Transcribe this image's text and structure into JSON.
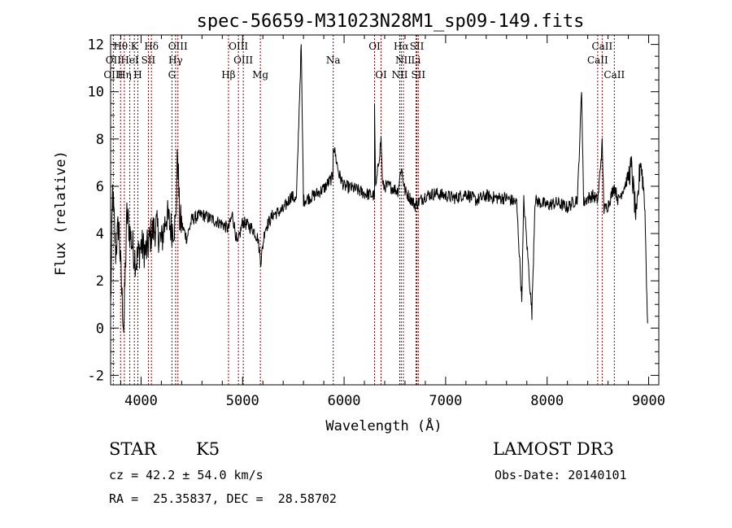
{
  "chart_data": {
    "type": "line",
    "title": "spec-56659-M31023N28M1_sp09-149.fits",
    "xlabel": "Wavelength (Å)",
    "ylabel": "Flux (relative)",
    "xlim": [
      3700,
      9100
    ],
    "ylim": [
      -2.4,
      12.4
    ],
    "xticks": [
      4000,
      5000,
      6000,
      7000,
      8000,
      9000
    ],
    "yticks": [
      -2,
      0,
      2,
      4,
      6,
      8,
      10,
      12
    ],
    "series": [
      {
        "name": "flux",
        "anchors": [
          [
            3700,
            0.8
          ],
          [
            3720,
            5.8
          ],
          [
            3750,
            3.2
          ],
          [
            3780,
            4.5
          ],
          [
            3810,
            1.5
          ],
          [
            3830,
            0.0
          ],
          [
            3860,
            4.8
          ],
          [
            3900,
            3.8
          ],
          [
            3950,
            2.8
          ],
          [
            4000,
            3.5
          ],
          [
            4050,
            3.2
          ],
          [
            4100,
            4.0
          ],
          [
            4150,
            4.3
          ],
          [
            4200,
            3.6
          ],
          [
            4250,
            4.8
          ],
          [
            4300,
            4.2
          ],
          [
            4340,
            4.4
          ],
          [
            4360,
            7.5
          ],
          [
            4380,
            4.6
          ],
          [
            4450,
            3.8
          ],
          [
            4500,
            4.6
          ],
          [
            4600,
            4.8
          ],
          [
            4700,
            4.6
          ],
          [
            4800,
            4.4
          ],
          [
            4860,
            4.2
          ],
          [
            4900,
            4.8
          ],
          [
            4950,
            3.5
          ],
          [
            5000,
            4.5
          ],
          [
            5100,
            4.2
          ],
          [
            5150,
            3.8
          ],
          [
            5180,
            2.8
          ],
          [
            5220,
            4.2
          ],
          [
            5300,
            4.8
          ],
          [
            5400,
            5.0
          ],
          [
            5480,
            5.6
          ],
          [
            5530,
            5.4
          ],
          [
            5577,
            12.0
          ],
          [
            5600,
            5.4
          ],
          [
            5700,
            5.6
          ],
          [
            5800,
            5.9
          ],
          [
            5890,
            6.4
          ],
          [
            5893,
            7.8
          ],
          [
            5950,
            6.5
          ],
          [
            6000,
            6.0
          ],
          [
            6100,
            5.9
          ],
          [
            6200,
            5.7
          ],
          [
            6300,
            5.6
          ],
          [
            6300,
            9.5
          ],
          [
            6310,
            5.8
          ],
          [
            6364,
            8.0
          ],
          [
            6380,
            6.0
          ],
          [
            6450,
            6.0
          ],
          [
            6530,
            5.8
          ],
          [
            6563,
            6.8
          ],
          [
            6600,
            5.8
          ],
          [
            6700,
            5.2
          ],
          [
            6800,
            5.6
          ],
          [
            6900,
            5.7
          ],
          [
            7000,
            5.6
          ],
          [
            7100,
            5.5
          ],
          [
            7200,
            5.7
          ],
          [
            7300,
            5.4
          ],
          [
            7400,
            5.6
          ],
          [
            7500,
            5.5
          ],
          [
            7600,
            5.5
          ],
          [
            7700,
            5.3
          ],
          [
            7750,
            1.2
          ],
          [
            7770,
            5.4
          ],
          [
            7850,
            0.6
          ],
          [
            7880,
            5.4
          ],
          [
            8000,
            5.2
          ],
          [
            8100,
            5.3
          ],
          [
            8200,
            5.1
          ],
          [
            8300,
            5.5
          ],
          [
            8340,
            10.1
          ],
          [
            8360,
            5.3
          ],
          [
            8400,
            5.5
          ],
          [
            8450,
            5.6
          ],
          [
            8500,
            5.4
          ],
          [
            8542,
            7.8
          ],
          [
            8560,
            5.0
          ],
          [
            8600,
            5.2
          ],
          [
            8662,
            6.0
          ],
          [
            8700,
            5.4
          ],
          [
            8780,
            6.2
          ],
          [
            8830,
            6.8
          ],
          [
            8880,
            4.5
          ],
          [
            8920,
            7.2
          ],
          [
            8960,
            5.5
          ],
          [
            8990,
            0.2
          ]
        ]
      }
    ],
    "emission_lines": [
      {
        "label": "Hθ",
        "wave": 3798,
        "row": 0
      },
      {
        "label": "K",
        "wave": 3934,
        "row": 0
      },
      {
        "label": "Hδ",
        "wave": 4102,
        "row": 0
      },
      {
        "label": "OIII",
        "wave": 4363,
        "row": 0
      },
      {
        "label": "OIII",
        "wave": 4959,
        "row": 0
      },
      {
        "label": "OI",
        "wave": 6300,
        "row": 0
      },
      {
        "label": "Hα",
        "wave": 6563,
        "row": 0
      },
      {
        "label": "SII",
        "wave": 6717,
        "row": 0
      },
      {
        "label": "CaII",
        "wave": 8542,
        "row": 0
      },
      {
        "label": "OII",
        "wave": 3727,
        "row": 1
      },
      {
        "label": "HeI",
        "wave": 3889,
        "row": 1
      },
      {
        "label": "SII",
        "wave": 4072,
        "row": 1
      },
      {
        "label": "Hγ",
        "wave": 4340,
        "row": 1
      },
      {
        "label": "OIII",
        "wave": 5007,
        "row": 1
      },
      {
        "label": "Na",
        "wave": 5893,
        "row": 1
      },
      {
        "label": "NII",
        "wave": 6584,
        "row": 1
      },
      {
        "label": "Li",
        "wave": 6708,
        "row": 1
      },
      {
        "label": "CaII",
        "wave": 8498,
        "row": 1
      },
      {
        "label": "OIII",
        "wave": 3727,
        "row": 2
      },
      {
        "label": "Hη",
        "wave": 3835,
        "row": 2
      },
      {
        "label": "H",
        "wave": 3968,
        "row": 2
      },
      {
        "label": "G",
        "wave": 4304,
        "row": 2
      },
      {
        "label": "Hβ",
        "wave": 4861,
        "row": 2
      },
      {
        "label": "Mg",
        "wave": 5175,
        "row": 2
      },
      {
        "label": "OI",
        "wave": 6364,
        "row": 2
      },
      {
        "label": "NII",
        "wave": 6548,
        "row": 2
      },
      {
        "label": "SII",
        "wave": 6731,
        "row": 2
      },
      {
        "label": "CaII",
        "wave": 8662,
        "row": 2
      }
    ],
    "colors": {
      "line": "#000000",
      "marker": "#8b0000"
    }
  },
  "info": {
    "class": "STAR",
    "subclass": "K5",
    "survey": "LAMOST DR3",
    "cz": "cz = 42.2 ± 54.0 km/s",
    "obs_date": "Obs-Date: 20140101",
    "coords": "RA =  25.35837, DEC =  28.58702"
  }
}
